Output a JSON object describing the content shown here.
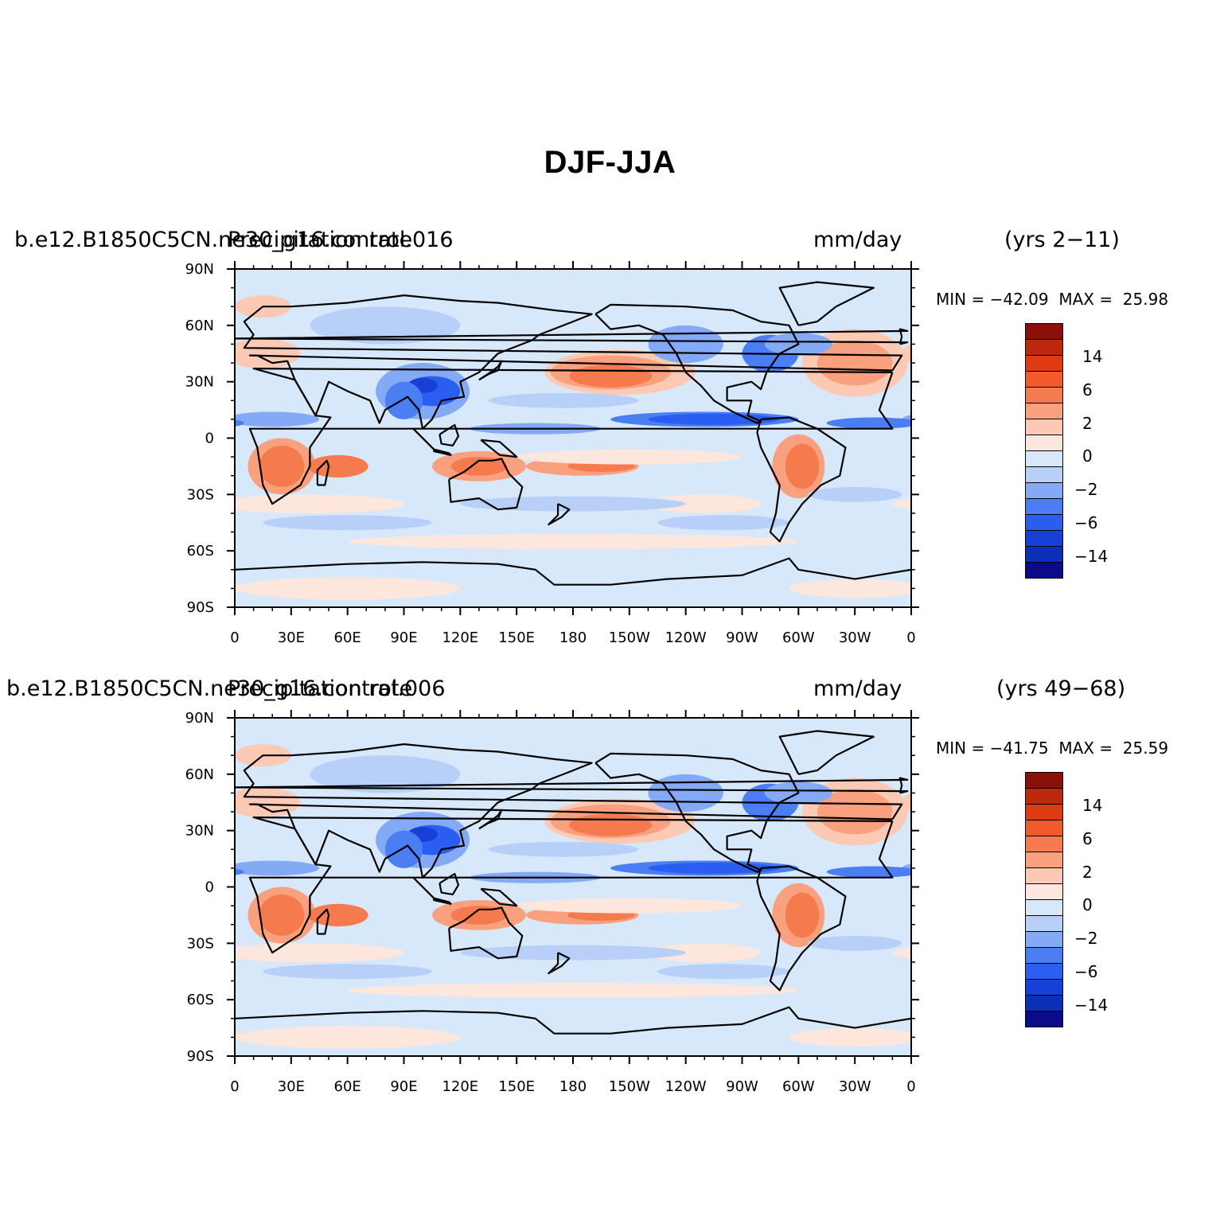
{
  "figure": {
    "title": "DJF-JJA"
  },
  "colors": {
    "levels": [
      "#0a0a8a",
      "#0a2fb8",
      "#1640d8",
      "#2a5ef0",
      "#4a7ef2",
      "#85aaf5",
      "#b8cff8",
      "#d8e8fb",
      "#fde7dc",
      "#fccab4",
      "#f9a07e",
      "#f57b4e",
      "#f05a2c",
      "#e03a12",
      "#be280c",
      "#8a1008"
    ],
    "coast": "#000000"
  },
  "colorbar": {
    "labels": [
      "14",
      "6",
      "2",
      "0",
      "−2",
      "−6",
      "−14"
    ]
  },
  "map_axes": {
    "lat_labels": [
      "90N",
      "60N",
      "30N",
      "0",
      "30S",
      "60S",
      "90S"
    ],
    "lon_labels": [
      "0",
      "30E",
      "60E",
      "90E",
      "120E",
      "150E",
      "180",
      "150W",
      "120W",
      "90W",
      "60W",
      "30W",
      "0"
    ]
  },
  "panels": [
    {
      "case": "b.e12.B1850C5CN.ne30_g16.control.016",
      "variable": "Precipitation rate",
      "units": "mm/day",
      "years": "(yrs 2−11)",
      "min": "MIN = −42.09",
      "max": "MAX =  25.98"
    },
    {
      "case": "b.e12.B1850C5CN.ne30_g16.control.006",
      "variable": "Precipitation rate",
      "units": "mm/day",
      "years": "(yrs 49−68)",
      "min": "MIN = −41.75",
      "max": "MAX =  25.59"
    }
  ]
}
